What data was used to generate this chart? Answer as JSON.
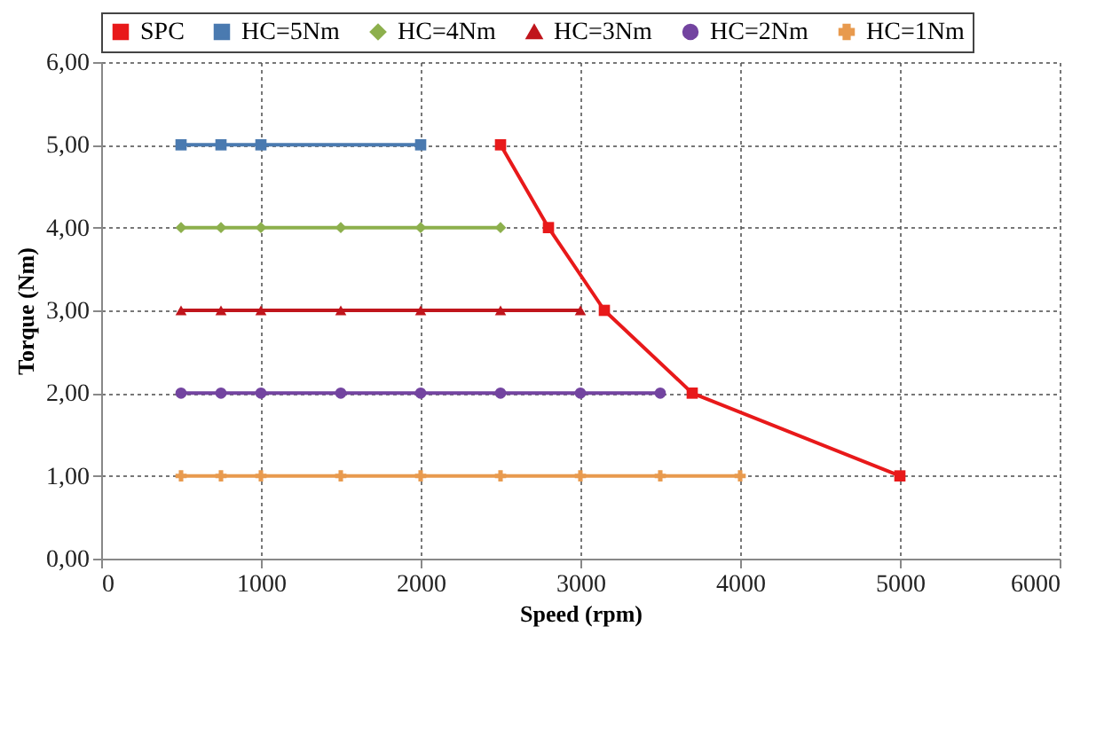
{
  "chart_data": {
    "type": "line",
    "xlabel": "Speed (rpm)",
    "ylabel": "Torque (Nm)",
    "xlim": [
      0,
      6000
    ],
    "xticks": [
      0,
      1000,
      2000,
      3000,
      4000,
      5000,
      6000
    ],
    "ylim": [
      0,
      6
    ],
    "yticks": [
      {
        "value": 0,
        "label": "0,00"
      },
      {
        "value": 1,
        "label": "1,00"
      },
      {
        "value": 2,
        "label": "2,00"
      },
      {
        "value": 3,
        "label": "3,00"
      },
      {
        "value": 4,
        "label": "4,00"
      },
      {
        "value": 5,
        "label": "5,00"
      },
      {
        "value": 6,
        "label": "6,00"
      }
    ],
    "grid": true,
    "legend": "top",
    "line_style": "solid",
    "series": [
      {
        "name": "SPC",
        "color": "#e8191a",
        "marker": "square",
        "x": [
          2500,
          2800,
          3150,
          3700,
          5000
        ],
        "values": [
          5,
          4,
          3,
          2,
          1
        ]
      },
      {
        "name": "HC=5Nm",
        "color": "#4a7ab0",
        "marker": "square",
        "x": [
          500,
          750,
          1000,
          2000
        ],
        "values": [
          5,
          5,
          5,
          5
        ]
      },
      {
        "name": "HC=4Nm",
        "color": "#8db04d",
        "marker": "diamond",
        "x": [
          500,
          750,
          1000,
          1500,
          2000,
          2500
        ],
        "values": [
          4,
          4,
          4,
          4,
          4,
          4
        ]
      },
      {
        "name": "HC=3Nm",
        "color": "#c0151c",
        "marker": "triangle",
        "x": [
          500,
          750,
          1000,
          1500,
          2000,
          2500,
          3000
        ],
        "values": [
          3,
          3,
          3,
          3,
          3,
          3,
          3
        ]
      },
      {
        "name": "HC=2Nm",
        "color": "#7344a0",
        "marker": "circle",
        "x": [
          500,
          750,
          1000,
          1500,
          2000,
          2500,
          3000,
          3500
        ],
        "values": [
          2,
          2,
          2,
          2,
          2,
          2,
          2,
          2
        ]
      },
      {
        "name": "HC=1Nm",
        "color": "#e89a4e",
        "marker": "cross",
        "x": [
          500,
          750,
          1000,
          1500,
          2000,
          2500,
          3000,
          3500,
          4000
        ],
        "values": [
          1,
          1,
          1,
          1,
          1,
          1,
          1,
          1,
          1
        ]
      }
    ]
  }
}
